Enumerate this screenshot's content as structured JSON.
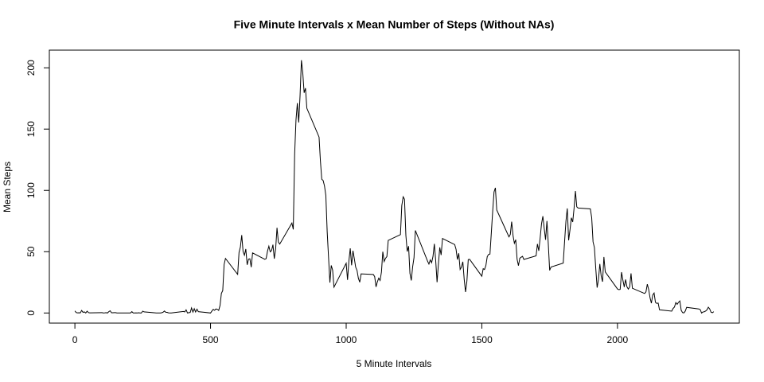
{
  "chart_data": {
    "type": "line",
    "title": "Five Minute Intervals x Mean Number of Steps (Without NAs)",
    "xlabel": "5 Minute Intervals",
    "ylabel": "Mean Steps",
    "color": "#000000",
    "xlim": [
      -94.2,
      2449.2
    ],
    "ylim": [
      -8.25,
      214.4
    ],
    "xticks": [
      0,
      500,
      1000,
      1500,
      2000
    ],
    "yticks": [
      0,
      50,
      100,
      150,
      200
    ],
    "x": [
      0,
      5,
      10,
      15,
      20,
      25,
      30,
      35,
      40,
      45,
      50,
      55,
      100,
      105,
      110,
      115,
      120,
      125,
      130,
      135,
      140,
      145,
      150,
      155,
      200,
      205,
      210,
      215,
      220,
      225,
      230,
      235,
      240,
      245,
      250,
      255,
      300,
      305,
      310,
      315,
      320,
      325,
      330,
      335,
      340,
      345,
      350,
      355,
      400,
      405,
      410,
      415,
      420,
      425,
      430,
      435,
      440,
      445,
      450,
      455,
      500,
      505,
      510,
      515,
      520,
      525,
      530,
      535,
      540,
      545,
      550,
      555,
      600,
      605,
      610,
      615,
      620,
      625,
      630,
      635,
      640,
      645,
      650,
      655,
      700,
      705,
      710,
      715,
      720,
      725,
      730,
      735,
      740,
      745,
      750,
      755,
      800,
      805,
      810,
      815,
      820,
      825,
      830,
      835,
      840,
      845,
      850,
      855,
      900,
      905,
      910,
      915,
      920,
      925,
      930,
      935,
      940,
      945,
      950,
      955,
      1000,
      1005,
      1010,
      1015,
      1020,
      1025,
      1030,
      1035,
      1040,
      1045,
      1050,
      1055,
      1100,
      1105,
      1110,
      1115,
      1120,
      1125,
      1130,
      1135,
      1140,
      1145,
      1150,
      1155,
      1200,
      1205,
      1210,
      1215,
      1220,
      1225,
      1230,
      1235,
      1240,
      1245,
      1250,
      1255,
      1300,
      1305,
      1310,
      1315,
      1320,
      1325,
      1330,
      1335,
      1340,
      1345,
      1350,
      1355,
      1400,
      1405,
      1410,
      1415,
      1420,
      1425,
      1430,
      1435,
      1440,
      1445,
      1450,
      1455,
      1500,
      1505,
      1510,
      1515,
      1520,
      1525,
      1530,
      1535,
      1540,
      1545,
      1550,
      1555,
      1600,
      1605,
      1610,
      1615,
      1620,
      1625,
      1630,
      1635,
      1640,
      1645,
      1650,
      1655,
      1700,
      1705,
      1710,
      1715,
      1720,
      1725,
      1730,
      1735,
      1740,
      1745,
      1750,
      1755,
      1800,
      1805,
      1810,
      1815,
      1820,
      1825,
      1830,
      1835,
      1840,
      1845,
      1850,
      1855,
      1900,
      1905,
      1910,
      1915,
      1920,
      1925,
      1930,
      1935,
      1940,
      1945,
      1950,
      1955,
      2000,
      2005,
      2010,
      2015,
      2020,
      2025,
      2030,
      2035,
      2040,
      2045,
      2050,
      2055,
      2100,
      2105,
      2110,
      2115,
      2120,
      2125,
      2130,
      2135,
      2140,
      2145,
      2150,
      2155,
      2200,
      2205,
      2210,
      2215,
      2220,
      2225,
      2230,
      2235,
      2240,
      2245,
      2250,
      2255,
      2300,
      2305,
      2310,
      2315,
      2320,
      2325,
      2330,
      2335,
      2340,
      2345,
      2350,
      2355
    ],
    "values": [
      1.7,
      0.3,
      0.1,
      0.2,
      0.1,
      2.1,
      0.5,
      0.9,
      0,
      1.5,
      0.3,
      0.1,
      0.3,
      0,
      0.1,
      0.3,
      0,
      1.1,
      1.8,
      0.2,
      0.2,
      0.3,
      0.3,
      0,
      0,
      0,
      1.1,
      0,
      0,
      0.1,
      0,
      0.2,
      0,
      0,
      1.5,
      0.9,
      0,
      0,
      0,
      0,
      0.2,
      0.6,
      1.6,
      0.6,
      0.5,
      0.1,
      0,
      0,
      1.2,
      0.9,
      2.6,
      0,
      0.3,
      0.4,
      4.1,
      0.7,
      3.5,
      0.8,
      3.1,
      1.1,
      0,
      1.6,
      3,
      2.2,
      3.3,
      3,
      2.1,
      6.1,
      16,
      18.3,
      39.5,
      44.5,
      31.5,
      49.3,
      53.8,
      63.5,
      50,
      47.1,
      52.2,
      39.3,
      44,
      44.2,
      37.4,
      49,
      43.8,
      44.4,
      50.5,
      54.5,
      49.9,
      51,
      55.7,
      44.3,
      52.3,
      69.5,
      57.8,
      56.2,
      73.4,
      68.2,
      129.4,
      157.5,
      171.2,
      155.4,
      177.3,
      206.2,
      195.9,
      179.6,
      183.4,
      167,
      143.5,
      124,
      109.1,
      108.1,
      103.7,
      96,
      66.2,
      45.2,
      24.8,
      38.8,
      35,
      21.1,
      40.6,
      27,
      42.4,
      52.7,
      38.9,
      50.8,
      44.3,
      37.4,
      34.7,
      28.3,
      25.1,
      31.9,
      31.4,
      29.7,
      21.3,
      25.5,
      28.4,
      26.5,
      33.4,
      50,
      42,
      44.6,
      46,
      59.2,
      63.9,
      87.6,
      94.8,
      92.8,
      63.4,
      50.2,
      54.5,
      32.4,
      26.5,
      37.7,
      45.1,
      67.3,
      42.3,
      39.9,
      43.3,
      41,
      46.2,
      56.4,
      42.8,
      25.1,
      40,
      53.5,
      47.3,
      60.8,
      55.8,
      52,
      43.6,
      48.7,
      35.5,
      37.5,
      41.8,
      27.5,
      17.1,
      26.1,
      43.6,
      43.8,
      30,
      36.1,
      35.5,
      38.8,
      46,
      47.8,
      48.1,
      65.3,
      82.9,
      98.7,
      102.1,
      84,
      62.1,
      64.1,
      74.5,
      63.2,
      56.9,
      59.8,
      43.9,
      38.6,
      44.7,
      45.5,
      46.2,
      43.7,
      46.6,
      56.3,
      50.7,
      61.2,
      72.7,
      78.9,
      68.9,
      59.7,
      75.1,
      56.5,
      34.8,
      37.5,
      40.7,
      58,
      74.7,
      85.3,
      59.3,
      67.8,
      77.7,
      74.2,
      85.3,
      99.5,
      86.6,
      85.6,
      84.9,
      77.8,
      58,
      53.4,
      36.3,
      20.7,
      27.4,
      40,
      30.2,
      25.5,
      45.7,
      33.5,
      19.6,
      19,
      19.3,
      33.3,
      26.8,
      21.2,
      27.3,
      21.3,
      19.5,
      21.3,
      32.3,
      20.2,
      15.9,
      17.2,
      23.5,
      19.2,
      12.5,
      8,
      14.7,
      16.3,
      8.7,
      7.8,
      8.1,
      2.6,
      1.5,
      3.7,
      4.8,
      8.5,
      7.1,
      8.7,
      9.8,
      2.2,
      0.3,
      0.1,
      1.6,
      4.6,
      3.3,
      2.8,
      0,
      0.8,
      1,
      1.6,
      2.6,
      4.7,
      3.3,
      0.6,
      0.2,
      1.1
    ]
  }
}
